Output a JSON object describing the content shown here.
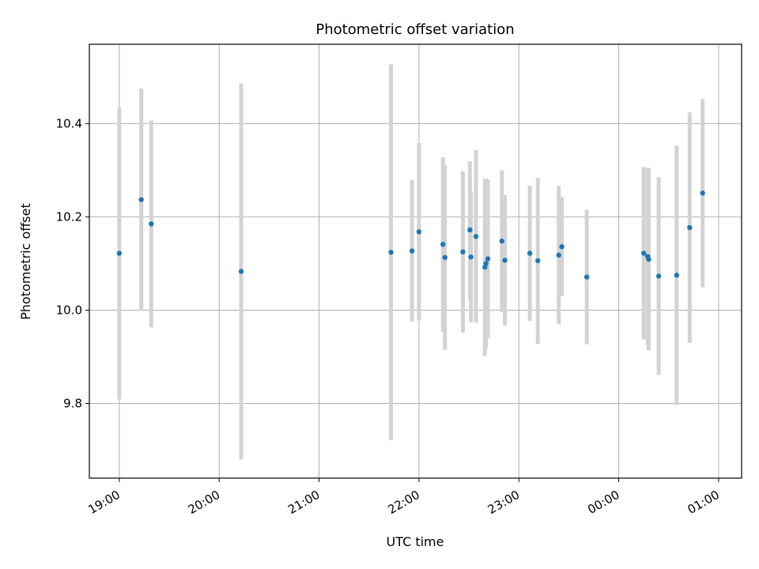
{
  "chart_data": {
    "type": "scatter",
    "title": "Photometric offset variation",
    "xlabel": "UTC time",
    "ylabel": "Photometric offset",
    "x_ticks": [
      "19:00",
      "20:00",
      "21:00",
      "22:00",
      "23:00",
      "00:00",
      "01:00"
    ],
    "x_tick_hours": [
      19,
      20,
      21,
      22,
      23,
      24,
      25
    ],
    "xlim_hours": [
      18.7,
      25.23
    ],
    "y_ticks": [
      "9.8",
      "10.0",
      "10.2",
      "10.4"
    ],
    "y_tick_values": [
      9.8,
      10.0,
      10.2,
      10.4
    ],
    "ylim": [
      9.64,
      10.57
    ],
    "grid": true,
    "marker_color": "#1f77b4",
    "errorbar_color": "#d3d3d3",
    "series": [
      {
        "points": [
          {
            "x": 19.0,
            "y": 10.122,
            "err": 0.313
          },
          {
            "x": 19.22,
            "y": 10.237,
            "err": 0.238
          },
          {
            "x": 19.32,
            "y": 10.185,
            "err": 0.222
          },
          {
            "x": 20.22,
            "y": 10.083,
            "err": 0.403
          },
          {
            "x": 21.72,
            "y": 10.124,
            "err": 0.403
          },
          {
            "x": 21.93,
            "y": 10.127,
            "err": 0.152
          },
          {
            "x": 22.0,
            "y": 10.168,
            "err": 0.19
          },
          {
            "x": 22.24,
            "y": 10.141,
            "err": 0.187
          },
          {
            "x": 22.26,
            "y": 10.113,
            "err": 0.198
          },
          {
            "x": 22.44,
            "y": 10.125,
            "err": 0.173
          },
          {
            "x": 22.51,
            "y": 10.172,
            "err": 0.147
          },
          {
            "x": 22.52,
            "y": 10.114,
            "err": 0.14
          },
          {
            "x": 22.57,
            "y": 10.158,
            "err": 0.185
          },
          {
            "x": 22.66,
            "y": 10.092,
            "err": 0.19
          },
          {
            "x": 22.67,
            "y": 10.1,
            "err": 0.182
          },
          {
            "x": 22.69,
            "y": 10.11,
            "err": 0.17
          },
          {
            "x": 22.83,
            "y": 10.148,
            "err": 0.152
          },
          {
            "x": 22.86,
            "y": 10.107,
            "err": 0.14
          },
          {
            "x": 23.11,
            "y": 10.122,
            "err": 0.145
          },
          {
            "x": 23.19,
            "y": 10.106,
            "err": 0.178
          },
          {
            "x": 23.4,
            "y": 10.118,
            "err": 0.148
          },
          {
            "x": 23.43,
            "y": 10.136,
            "err": 0.106
          },
          {
            "x": 23.68,
            "y": 10.071,
            "err": 0.144
          },
          {
            "x": 24.25,
            "y": 10.122,
            "err": 0.185
          },
          {
            "x": 24.29,
            "y": 10.115,
            "err": 0.19
          },
          {
            "x": 24.3,
            "y": 10.109,
            "err": 0.195
          },
          {
            "x": 24.4,
            "y": 10.073,
            "err": 0.212
          },
          {
            "x": 24.58,
            "y": 10.075,
            "err": 0.278
          },
          {
            "x": 24.71,
            "y": 10.177,
            "err": 0.247
          },
          {
            "x": 24.84,
            "y": 10.251,
            "err": 0.202
          }
        ]
      }
    ]
  }
}
